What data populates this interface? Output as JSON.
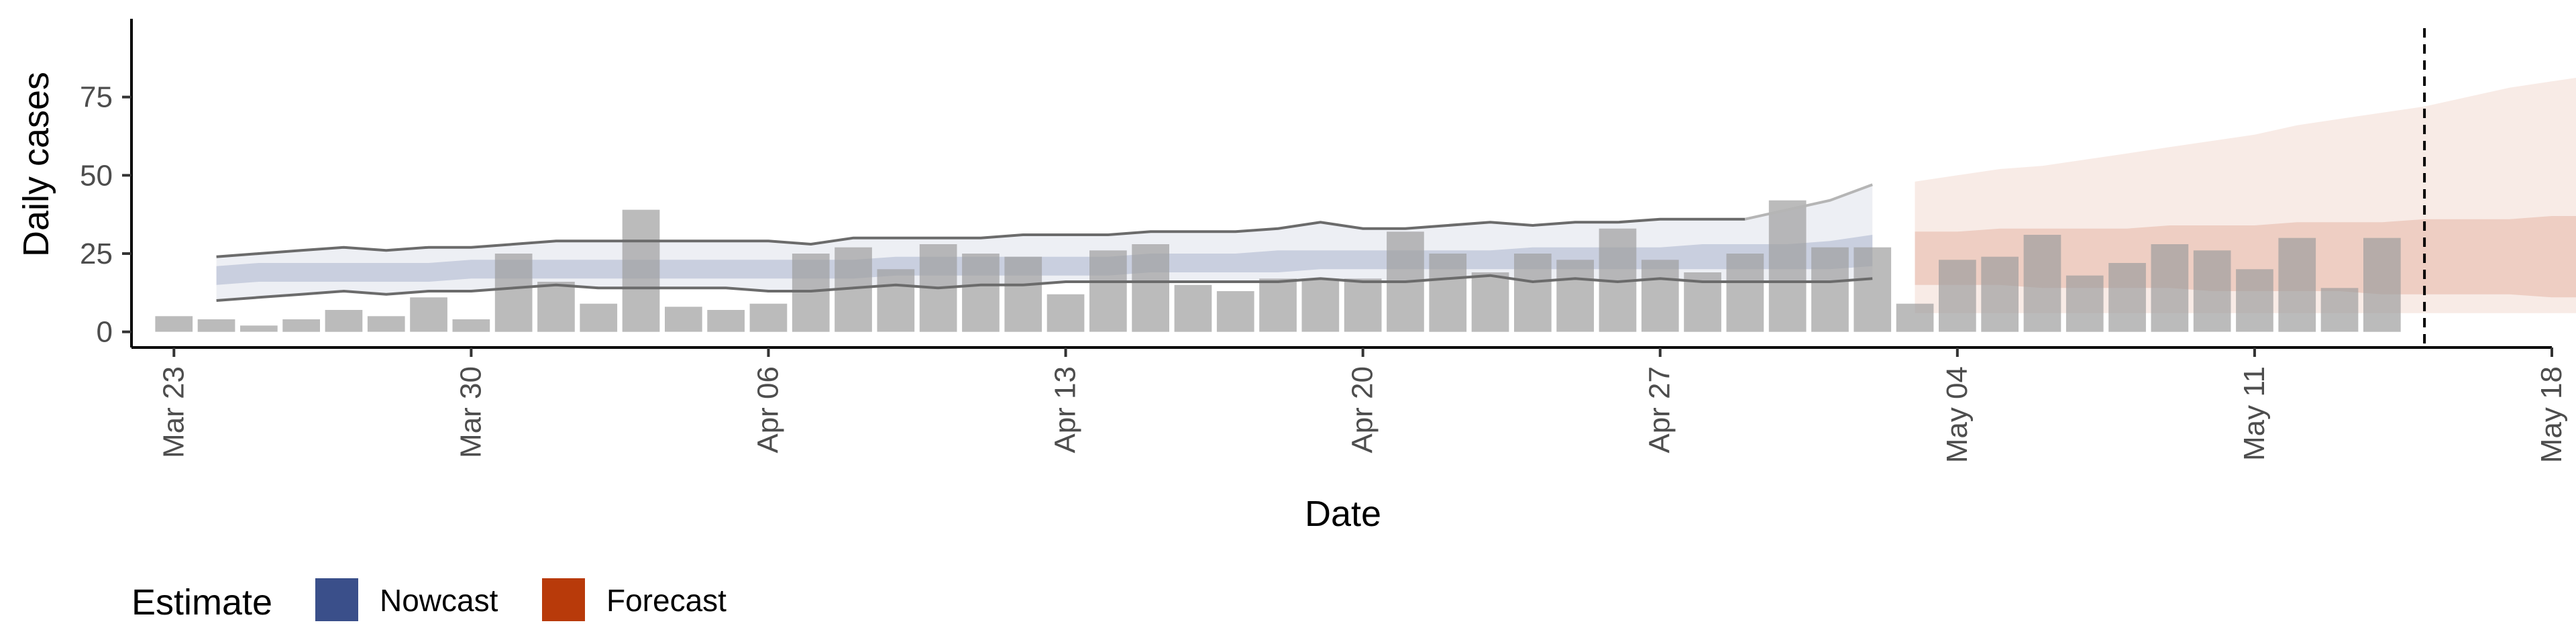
{
  "chart_data": {
    "type": "bar",
    "xlabel": "Date",
    "ylabel": "Daily cases",
    "ylim": [
      -5,
      100
    ],
    "xlim": [
      "2020-03-22",
      "2020-05-18"
    ],
    "y_ticks": [
      0,
      25,
      50,
      75
    ],
    "x_ticks": [
      {
        "date": "2020-03-23",
        "label": "Mar 23"
      },
      {
        "date": "2020-03-30",
        "label": "Mar 30"
      },
      {
        "date": "2020-04-06",
        "label": "Apr 06"
      },
      {
        "date": "2020-04-13",
        "label": "Apr 13"
      },
      {
        "date": "2020-04-20",
        "label": "Apr 20"
      },
      {
        "date": "2020-04-27",
        "label": "Apr 27"
      },
      {
        "date": "2020-05-04",
        "label": "May 04"
      },
      {
        "date": "2020-05-11",
        "label": "May 11"
      },
      {
        "date": "2020-05-18",
        "label": "May 18"
      }
    ],
    "grid": false,
    "legend_position": "bottom",
    "legend": {
      "title": "Estimate",
      "items": [
        {
          "label": "Nowcast",
          "color": "#3A4F8A"
        },
        {
          "label": "Forecast",
          "color": "#B83A0A"
        }
      ]
    },
    "colors": {
      "bars": "#9E9E9E",
      "nowcast": "#3A4F8A",
      "forecast": "#B83A0A",
      "outer_lines": "#6b6b6b",
      "vline": "#000000"
    },
    "vline_date": "2020-05-15",
    "cases": {
      "start_date": "2020-03-23",
      "values": [
        5,
        4,
        2,
        4,
        7,
        5,
        11,
        4,
        25,
        16,
        9,
        39,
        8,
        7,
        9,
        25,
        27,
        20,
        28,
        25,
        24,
        12,
        26,
        28,
        15,
        13,
        17,
        17,
        17,
        32,
        25,
        19,
        25,
        23,
        33,
        23,
        19,
        25,
        42,
        27,
        27,
        9,
        23,
        24,
        31,
        18,
        22,
        28,
        26,
        20,
        30,
        14,
        30
      ]
    },
    "nowcast": {
      "start_date": "2020-03-24",
      "outer_upper": [
        24,
        25,
        26,
        27,
        26,
        27,
        27,
        28,
        29,
        29,
        29,
        29,
        29,
        29,
        28,
        30,
        30,
        30,
        30,
        31,
        31,
        31,
        32,
        32,
        32,
        33,
        35,
        33,
        33,
        34,
        35,
        34,
        35,
        35,
        36,
        36,
        36,
        39,
        42,
        47
      ],
      "outer_lower": [
        10,
        11,
        12,
        13,
        12,
        13,
        13,
        14,
        15,
        14,
        14,
        14,
        14,
        13,
        13,
        14,
        15,
        14,
        15,
        15,
        16,
        16,
        16,
        16,
        16,
        16,
        17,
        16,
        16,
        17,
        18,
        16,
        17,
        16,
        17,
        16,
        16,
        16,
        16,
        17
      ],
      "inner_upper": [
        21,
        22,
        22,
        22,
        22,
        22,
        23,
        23,
        23,
        23,
        23,
        23,
        23,
        23,
        23,
        23,
        24,
        24,
        24,
        24,
        24,
        24,
        25,
        25,
        25,
        26,
        26,
        26,
        26,
        26,
        26,
        27,
        27,
        27,
        27,
        28,
        28,
        28,
        29,
        31
      ],
      "inner_lower": [
        15,
        16,
        16,
        16,
        16,
        16,
        17,
        17,
        17,
        17,
        17,
        17,
        17,
        17,
        17,
        17,
        18,
        18,
        18,
        18,
        18,
        18,
        19,
        19,
        19,
        19,
        20,
        20,
        20,
        20,
        20,
        20,
        20,
        20,
        20,
        20,
        20,
        20,
        20,
        21
      ]
    },
    "forecast": {
      "start_date": "2020-05-03",
      "outer_upper": [
        48,
        50,
        52,
        53,
        55,
        57,
        59,
        61,
        63,
        66,
        68,
        70,
        72,
        75,
        78,
        80,
        82,
        85,
        88,
        92
      ],
      "outer_lower": [
        6,
        6,
        6,
        6,
        6,
        6,
        6,
        6,
        6,
        6,
        6,
        6,
        6,
        6,
        6,
        6,
        6,
        6,
        6,
        6
      ],
      "inner_upper": [
        32,
        32,
        33,
        33,
        33,
        33,
        34,
        34,
        34,
        35,
        35,
        35,
        36,
        36,
        36,
        37,
        37,
        37,
        38,
        38
      ],
      "inner_lower": [
        15,
        15,
        15,
        14,
        14,
        14,
        14,
        13,
        13,
        13,
        13,
        12,
        12,
        12,
        12,
        11,
        11,
        11,
        11,
        10
      ]
    }
  }
}
